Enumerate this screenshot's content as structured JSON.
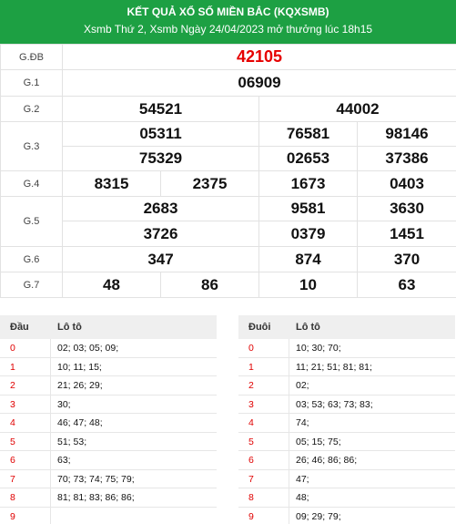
{
  "header": {
    "title": "KẾT QUẢ XỔ SỐ MIỀN BẮC (KQXSMB)",
    "subtitle": "Xsmb Thứ 2, Xsmb Ngày 24/04/2023 mở thưởng lúc 18h15"
  },
  "prizes": {
    "gdb": {
      "label": "G.ĐB",
      "values": [
        "42105"
      ]
    },
    "g1": {
      "label": "G.1",
      "values": [
        "06909"
      ]
    },
    "g2": {
      "label": "G.2",
      "values": [
        "54521",
        "44002"
      ]
    },
    "g3": {
      "label": "G.3",
      "values": [
        "05311",
        "76581",
        "98146",
        "75329",
        "02653",
        "37386"
      ]
    },
    "g4": {
      "label": "G.4",
      "values": [
        "8315",
        "2375",
        "1673",
        "0403"
      ]
    },
    "g5": {
      "label": "G.5",
      "values": [
        "2683",
        "9581",
        "3630",
        "3726",
        "0379",
        "1451"
      ]
    },
    "g6": {
      "label": "G.6",
      "values": [
        "347",
        "874",
        "370"
      ]
    },
    "g7": {
      "label": "G.7",
      "values": [
        "48",
        "86",
        "10",
        "63"
      ]
    }
  },
  "loto_dau": {
    "col1": "Đầu",
    "col2": "Lô tô",
    "rows": [
      {
        "k": "0",
        "v": "02; 03; 05; 09;"
      },
      {
        "k": "1",
        "v": "10; 11; 15;"
      },
      {
        "k": "2",
        "v": "21; 26; 29;"
      },
      {
        "k": "3",
        "v": "30;"
      },
      {
        "k": "4",
        "v": "46; 47; 48;"
      },
      {
        "k": "5",
        "v": "51; 53;"
      },
      {
        "k": "6",
        "v": "63;"
      },
      {
        "k": "7",
        "v": "70; 73; 74; 75; 79;"
      },
      {
        "k": "8",
        "v": "81; 81; 83; 86; 86;"
      },
      {
        "k": "9",
        "v": ""
      }
    ]
  },
  "loto_duoi": {
    "col1": "Đuôi",
    "col2": "Lô tô",
    "rows": [
      {
        "k": "0",
        "v": "10; 30; 70;"
      },
      {
        "k": "1",
        "v": "11; 21; 51; 81; 81;"
      },
      {
        "k": "2",
        "v": "02;"
      },
      {
        "k": "3",
        "v": "03; 53; 63; 73; 83;"
      },
      {
        "k": "4",
        "v": "74;"
      },
      {
        "k": "5",
        "v": "05; 15; 75;"
      },
      {
        "k": "6",
        "v": "26; 46; 86; 86;"
      },
      {
        "k": "7",
        "v": "47;"
      },
      {
        "k": "8",
        "v": "48;"
      },
      {
        "k": "9",
        "v": "09; 29; 79;"
      }
    ]
  }
}
